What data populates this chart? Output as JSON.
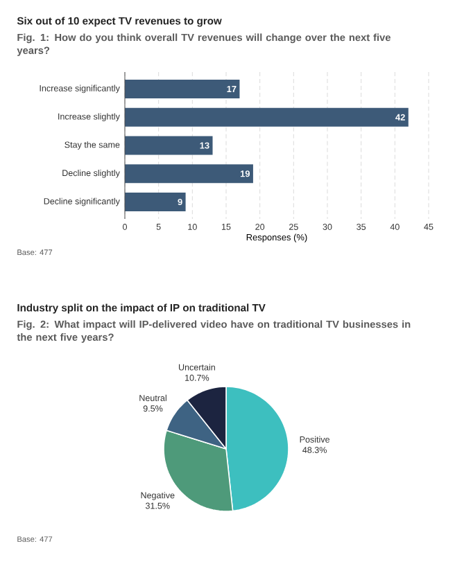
{
  "chart_data": [
    {
      "type": "bar",
      "orientation": "horizontal",
      "title": "Six out of 10 expect TV revenues to grow",
      "subtitle": "Fig. 1: How do you think overall TV revenues will change over the next five years?",
      "xlabel": "Responses (%)",
      "categories": [
        "Increase significantly",
        "Increase slightly",
        "Stay the same",
        "Decline slightly",
        "Decline significantly"
      ],
      "values": [
        17,
        42,
        13,
        19,
        9
      ],
      "color": "#3d5a78",
      "data_labels": true,
      "xlim": [
        0,
        45
      ],
      "xticks": [
        0,
        5,
        10,
        15,
        20,
        25,
        30,
        35,
        40,
        45
      ],
      "grid": "x",
      "annotations": [
        "Base: 477"
      ]
    },
    {
      "type": "pie",
      "title": "Industry split on the impact of IP on traditional TV",
      "subtitle": "Fig. 2: What impact will IP-delivered video have on traditional TV businesses in the next five years?",
      "categories": [
        "Positive",
        "Negative",
        "Neutral",
        "Uncertain"
      ],
      "values": [
        48.3,
        31.5,
        9.5,
        10.7
      ],
      "value_labels": [
        "48.3%",
        "31.5%",
        "9.5%",
        "10.7%"
      ],
      "colors": [
        "#3dbfbf",
        "#4e9a7a",
        "#3e6383",
        "#1c2440"
      ],
      "annotations": [
        "Base: 477"
      ]
    }
  ]
}
